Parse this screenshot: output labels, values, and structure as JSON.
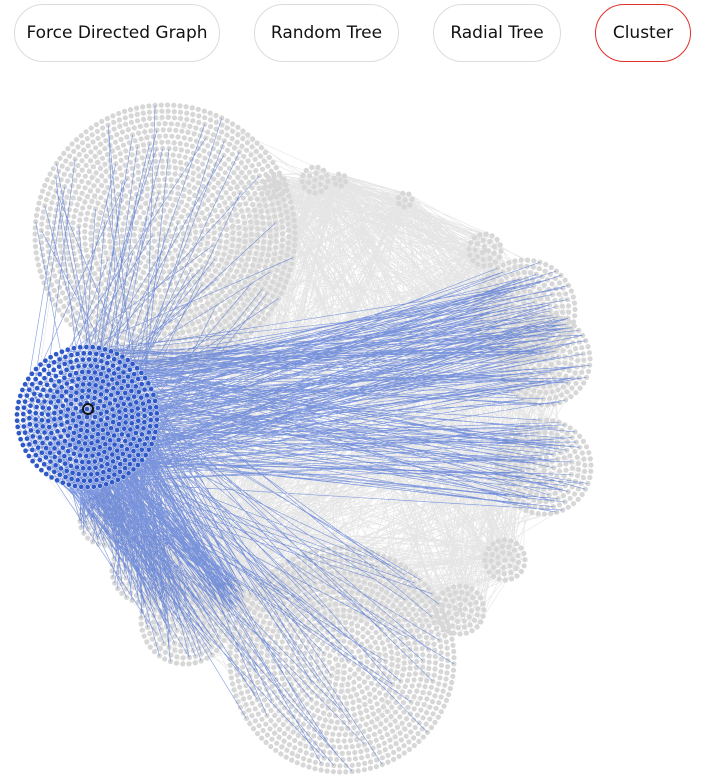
{
  "tabs": [
    {
      "label": "Force Directed Graph",
      "active": false
    },
    {
      "label": "Random Tree",
      "active": false
    },
    {
      "label": "Radial Tree",
      "active": false
    },
    {
      "label": "Cluster",
      "active": true
    }
  ],
  "graph": {
    "layout": "cluster",
    "colors": {
      "node": "#d7d7d7",
      "edge": "#dcdcdc",
      "highlight_node": "#2f59c9",
      "highlight_edge": "#4a6fd6",
      "selected_ring": "#111111",
      "active_tab_border": "#e0302a"
    }
  }
}
